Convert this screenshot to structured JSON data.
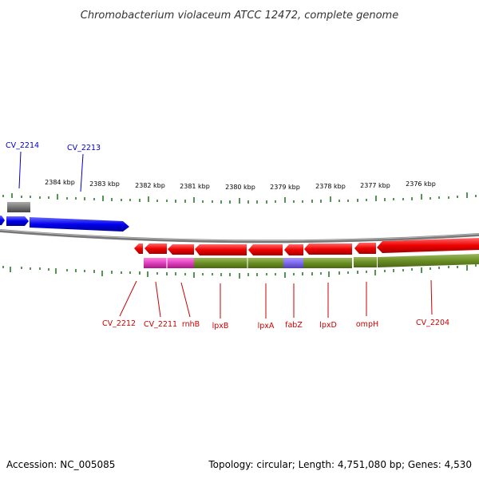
{
  "title": "Chromobacterium violaceum ATCC 12472, complete genome",
  "footer": {
    "accession": "Accession: NC_005085",
    "summary": "Topology: circular; Length: 4,751,080 bp; Genes: 4,530"
  },
  "colors": {
    "forward_cds": "#0000ee",
    "reverse_cds": "#ee0000",
    "forward_label": "#0000cc",
    "reverse_label": "#cc0000",
    "pseudo_feature": "#777777",
    "backbone": "#888888",
    "tick": "#2a7a2a",
    "operon_green": "#6b8e23",
    "operon_magenta": "#e040c0",
    "operon_purple": "#7b68ee"
  },
  "scale_ticks": [
    "2384 kbp",
    "2383 kbp",
    "2382 kbp",
    "2381 kbp",
    "2380 kbp",
    "2379 kbp",
    "2378 kbp",
    "2377 kbp",
    "2376 kbp"
  ],
  "forward_genes": [
    "CV_2214",
    "CV_2213"
  ],
  "reverse_genes": [
    "CV_2212",
    "CV_2211",
    "rnhB",
    "lpxB",
    "lpxA",
    "fabZ",
    "lpxD",
    "ompH",
    "CV_2204"
  ]
}
